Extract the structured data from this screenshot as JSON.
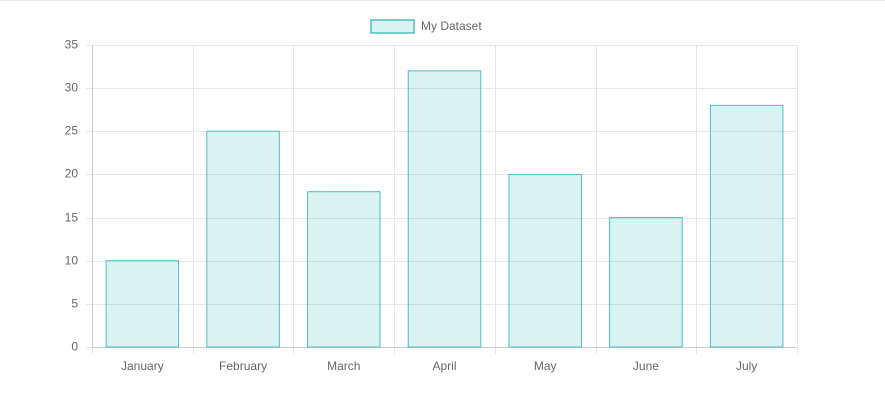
{
  "chart_data": {
    "type": "bar",
    "categories": [
      "January",
      "February",
      "March",
      "April",
      "May",
      "June",
      "July"
    ],
    "series": [
      {
        "name": "My Dataset",
        "color": "#4bc0c0",
        "values": [
          10,
          25,
          18,
          32,
          20,
          15,
          28
        ]
      }
    ],
    "ylim": [
      0,
      35
    ],
    "yticks": [
      0,
      5,
      10,
      15,
      20,
      25,
      30,
      35
    ],
    "grid": true,
    "legend": "top"
  }
}
